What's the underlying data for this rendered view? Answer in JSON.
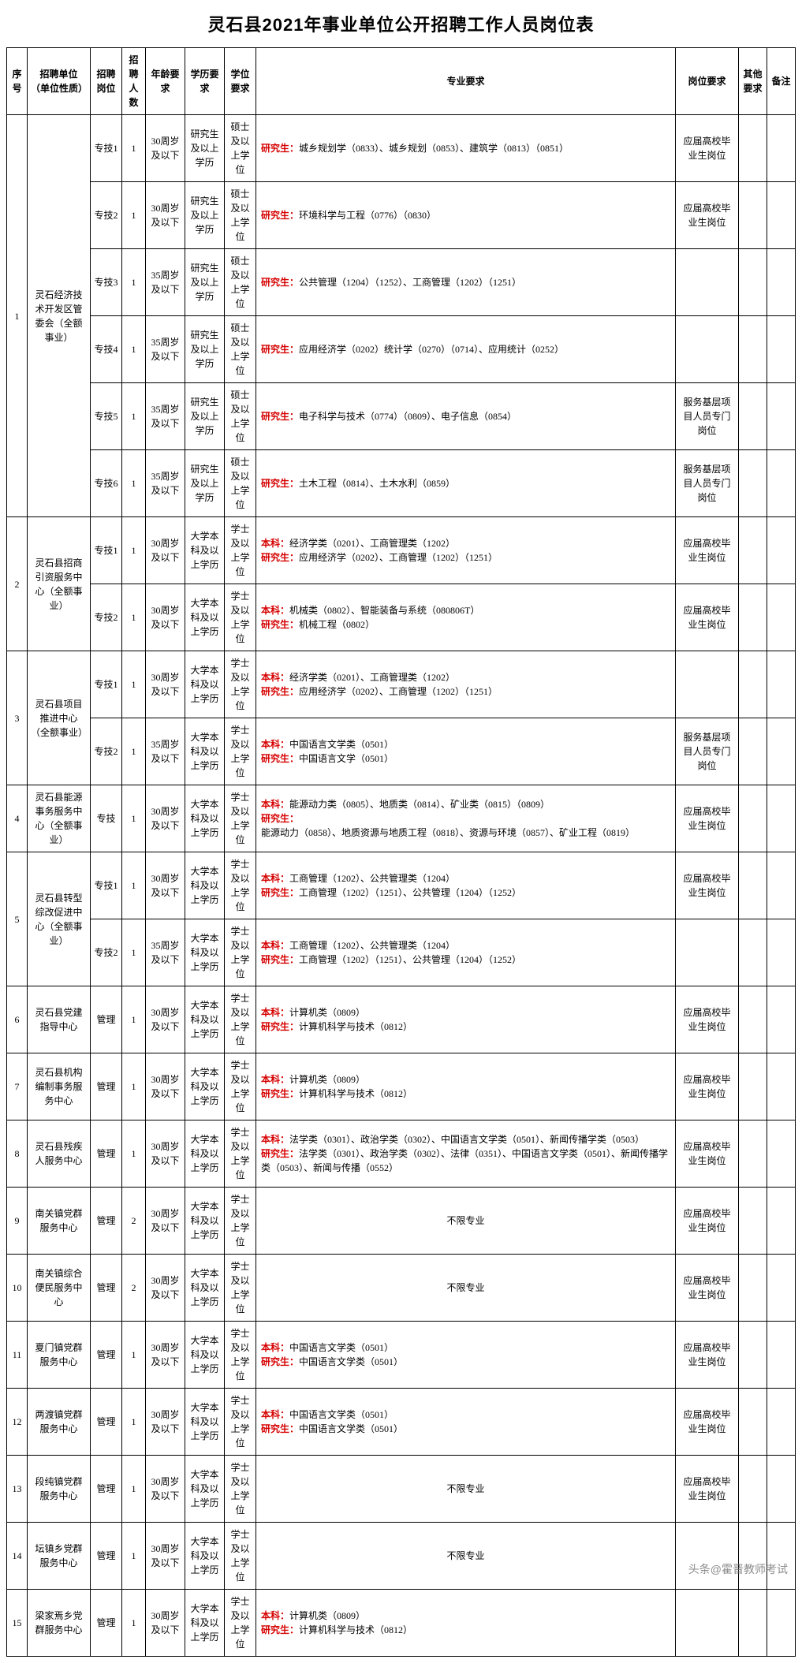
{
  "title": "灵石县2021年事业单位公开招聘工作人员岗位表",
  "watermark": "头条@霍晋教师考试",
  "headers": {
    "seq": "序号",
    "unit": "招聘单位（单位性质）",
    "post": "招聘岗位",
    "count": "招聘人数",
    "age": "年龄要求",
    "edu": "学历要求",
    "deg": "学位要求",
    "major": "专业要求",
    "preq": "岗位要求",
    "other": "其他要求",
    "note": "备注"
  },
  "label_benke": "本科：",
  "label_yanjiu": "研究生：",
  "groups": [
    {
      "seq": "1",
      "unit": "灵石经济技术开发区管委会（全额事业）",
      "rows": [
        {
          "post": "专技1",
          "count": "1",
          "age": "30周岁及以下",
          "edu": "研究生及以上学历",
          "deg": "硕士及以上学位",
          "yan": "城乡规划学（0833）、城乡规划（0853）、建筑学（0813）（0851）",
          "preq": "应届高校毕业生岗位"
        },
        {
          "post": "专技2",
          "count": "1",
          "age": "30周岁及以下",
          "edu": "研究生及以上学历",
          "deg": "硕士及以上学位",
          "yan": "环境科学与工程（0776）（0830）",
          "preq": "应届高校毕业生岗位"
        },
        {
          "post": "专技3",
          "count": "1",
          "age": "35周岁及以下",
          "edu": "研究生及以上学历",
          "deg": "硕士及以上学位",
          "yan": "公共管理（1204）（1252）、工商管理（1202）（1251）",
          "preq": ""
        },
        {
          "post": "专技4",
          "count": "1",
          "age": "35周岁及以下",
          "edu": "研究生及以上学历",
          "deg": "硕士及以上学位",
          "yan": "应用经济学（0202）统计学（0270）（0714）、应用统计（0252）",
          "preq": ""
        },
        {
          "post": "专技5",
          "count": "1",
          "age": "35周岁及以下",
          "edu": "研究生及以上学历",
          "deg": "硕士及以上学位",
          "yan": "电子科学与技术（0774）（0809）、电子信息（0854）",
          "preq": "服务基层项目人员专门岗位"
        },
        {
          "post": "专技6",
          "count": "1",
          "age": "35周岁及以下",
          "edu": "研究生及以上学历",
          "deg": "硕士及以上学位",
          "yan": "土木工程（0814）、土木水利（0859）",
          "preq": "服务基层项目人员专门岗位"
        }
      ]
    },
    {
      "seq": "2",
      "unit": "灵石县招商引资服务中心（全额事业）",
      "rows": [
        {
          "post": "专技1",
          "count": "1",
          "age": "30周岁及以下",
          "edu": "大学本科及以上学历",
          "deg": "学士及以上学位",
          "ben": "经济学类（0201）、工商管理类（1202）",
          "yan": "应用经济学（0202）、工商管理（1202）（1251）",
          "preq": "应届高校毕业生岗位"
        },
        {
          "post": "专技2",
          "count": "1",
          "age": "30周岁及以下",
          "edu": "大学本科及以上学历",
          "deg": "学士及以上学位",
          "ben": "机械类（0802）、智能装备与系统（080806T）",
          "yan": "机械工程（0802）",
          "preq": "应届高校毕业生岗位"
        }
      ]
    },
    {
      "seq": "3",
      "unit": "灵石县项目推进中心（全额事业）",
      "rows": [
        {
          "post": "专技1",
          "count": "1",
          "age": "30周岁及以下",
          "edu": "大学本科及以上学历",
          "deg": "学士及以上学位",
          "ben": "经济学类（0201）、工商管理类（1202）",
          "yan": "应用经济学（0202）、工商管理（1202）（1251）",
          "preq": ""
        },
        {
          "post": "专技2",
          "count": "1",
          "age": "35周岁及以下",
          "edu": "大学本科及以上学历",
          "deg": "学士及以上学位",
          "ben": "中国语言文学类（0501）",
          "yan": "中国语言文学（0501）",
          "preq": "服务基层项目人员专门岗位"
        }
      ]
    },
    {
      "seq": "4",
      "unit": "灵石县能源事务服务中心（全额事业）",
      "rows": [
        {
          "post": "专技",
          "count": "1",
          "age": "30周岁及以下",
          "edu": "大学本科及以上学历",
          "deg": "学士及以上学位",
          "ben": "能源动力类（0805）、地质类（0814）、矿业类（0815）（0809）",
          "yan": "能源动力（0858）、地质资源与地质工程（0818）、资源与环境（0857）、矿业工程（0819）",
          "preq": "应届高校毕业生岗位"
        }
      ]
    },
    {
      "seq": "5",
      "unit": "灵石县转型综改促进中心（全额事业）",
      "rows": [
        {
          "post": "专技1",
          "count": "1",
          "age": "30周岁及以下",
          "edu": "大学本科及以上学历",
          "deg": "学士及以上学位",
          "ben": "工商管理（1202）、公共管理类（1204）",
          "yan": "工商管理（1202）（1251）、公共管理（1204）（1252）",
          "preq": "应届高校毕业生岗位"
        },
        {
          "post": "专技2",
          "count": "1",
          "age": "35周岁及以下",
          "edu": "大学本科及以上学历",
          "deg": "学士及以上学位",
          "ben": "工商管理（1202）、公共管理类（1204）",
          "yan": "工商管理（1202）（1251）、公共管理（1204）（1252）",
          "preq": ""
        }
      ]
    },
    {
      "seq": "6",
      "unit": "灵石县党建指导中心",
      "rows": [
        {
          "post": "管理",
          "count": "1",
          "age": "30周岁及以下",
          "edu": "大学本科及以上学历",
          "deg": "学士及以上学位",
          "ben": "计算机类（0809）",
          "yan": "计算机科学与技术（0812）",
          "preq": "应届高校毕业生岗位"
        }
      ]
    },
    {
      "seq": "7",
      "unit": "灵石县机构编制事务服务中心",
      "rows": [
        {
          "post": "管理",
          "count": "1",
          "age": "30周岁及以下",
          "edu": "大学本科及以上学历",
          "deg": "学士及以上学位",
          "ben": "计算机类（0809）",
          "yan": "计算机科学与技术（0812）",
          "preq": "应届高校毕业生岗位"
        }
      ]
    },
    {
      "seq": "8",
      "unit": "灵石县残疾人服务中心",
      "rows": [
        {
          "post": "管理",
          "count": "1",
          "age": "30周岁及以下",
          "edu": "大学本科及以上学历",
          "deg": "学士及以上学位",
          "ben": "法学类（0301）、政治学类（0302）、中国语言文学类（0501）、新闻传播学类（0503）",
          "yan": "法学类（0301）、政治学类（0302）、法律（0351）、中国语言文学类（0501）、新闻传播学类（0503）、新闻与传播（0552）",
          "preq": "应届高校毕业生岗位"
        }
      ]
    },
    {
      "seq": "9",
      "unit": "南关镇党群服务中心",
      "rows": [
        {
          "post": "管理",
          "count": "2",
          "age": "30周岁及以下",
          "edu": "大学本科及以上学历",
          "deg": "学士及以上学位",
          "plain": "不限专业",
          "preq": "应届高校毕业生岗位"
        }
      ]
    },
    {
      "seq": "10",
      "unit": "南关镇综合便民服务中心",
      "rows": [
        {
          "post": "管理",
          "count": "2",
          "age": "30周岁及以下",
          "edu": "大学本科及以上学历",
          "deg": "学士及以上学位",
          "plain": "不限专业",
          "preq": "应届高校毕业生岗位"
        }
      ]
    },
    {
      "seq": "11",
      "unit": "夏门镇党群服务中心",
      "rows": [
        {
          "post": "管理",
          "count": "1",
          "age": "30周岁及以下",
          "edu": "大学本科及以上学历",
          "deg": "学士及以上学位",
          "ben": "中国语言文学类（0501）",
          "yan": "中国语言文学类（0501）",
          "preq": "应届高校毕业生岗位"
        }
      ]
    },
    {
      "seq": "12",
      "unit": "两渡镇党群服务中心",
      "rows": [
        {
          "post": "管理",
          "count": "1",
          "age": "30周岁及以下",
          "edu": "大学本科及以上学历",
          "deg": "学士及以上学位",
          "ben": "中国语言文学类（0501）",
          "yan": "中国语言文学类（0501）",
          "preq": "应届高校毕业生岗位"
        }
      ]
    },
    {
      "seq": "13",
      "unit": "段纯镇党群服务中心",
      "rows": [
        {
          "post": "管理",
          "count": "1",
          "age": "30周岁及以下",
          "edu": "大学本科及以上学历",
          "deg": "学士及以上学位",
          "plain": "不限专业",
          "preq": "应届高校毕业生岗位"
        }
      ]
    },
    {
      "seq": "14",
      "unit": "坛镇乡党群服务中心",
      "rows": [
        {
          "post": "管理",
          "count": "1",
          "age": "30周岁及以下",
          "edu": "大学本科及以上学历",
          "deg": "学士及以上学位",
          "plain": "不限专业",
          "preq": ""
        }
      ]
    },
    {
      "seq": "15",
      "unit": "梁家焉乡党群服务中心",
      "rows": [
        {
          "post": "管理",
          "count": "1",
          "age": "30周岁及以下",
          "edu": "大学本科及以上学历",
          "deg": "学士及以上学位",
          "ben": "计算机类（0809）",
          "yan": "计算机科学与技术（0812）",
          "preq": ""
        }
      ]
    }
  ]
}
